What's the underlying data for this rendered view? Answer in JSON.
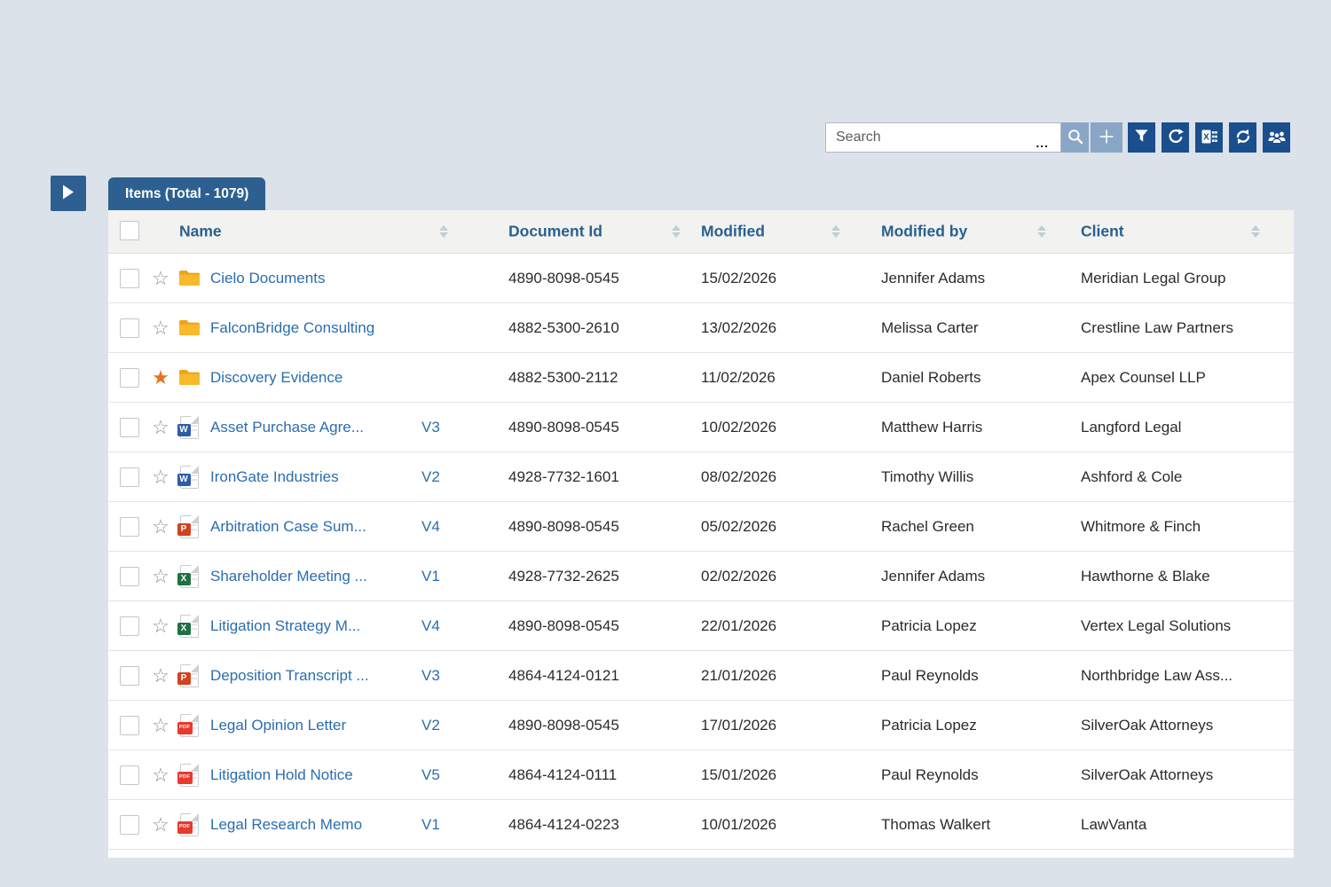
{
  "toolbar": {
    "search": {
      "placeholder": "Search",
      "menu_dots": "..."
    },
    "buttons": [
      {
        "name": "search-button",
        "icon": "magnifier-icon"
      },
      {
        "name": "add-button",
        "icon": "plus-icon"
      },
      {
        "name": "filter-button",
        "icon": "funnel-icon"
      },
      {
        "name": "refresh-button",
        "icon": "redo-arrow-icon"
      },
      {
        "name": "excel-export-button",
        "icon": "excel-icon"
      },
      {
        "name": "sync-button",
        "icon": "sync-arrows-icon"
      },
      {
        "name": "users-button",
        "icon": "people-icon"
      }
    ]
  },
  "panel": {
    "expand_button_icon": "play-arrow-icon"
  },
  "items_tab": {
    "label": "Items (Total - 1079)"
  },
  "table": {
    "columns": [
      {
        "label": "Name",
        "sortable": true
      },
      {
        "label": "Document Id",
        "sortable": true
      },
      {
        "label": "Modified",
        "sortable": true
      },
      {
        "label": "Modified by",
        "sortable": true
      },
      {
        "label": "Client",
        "sortable": true
      }
    ],
    "rows": [
      {
        "starred": false,
        "icon": "folder",
        "name": "Cielo Documents",
        "version": "",
        "doc_id": "4890-8098-0545",
        "modified": "15/02/2026",
        "modified_by": "Jennifer Adams",
        "client": "Meridian Legal Group"
      },
      {
        "starred": false,
        "icon": "folder",
        "name": "FalconBridge Consulting",
        "version": "",
        "doc_id": "4882-5300-2610",
        "modified": "13/02/2026",
        "modified_by": "Melissa Carter",
        "client": "Crestline Law Partners"
      },
      {
        "starred": true,
        "icon": "folder",
        "name": "Discovery Evidence",
        "version": "",
        "doc_id": "4882-5300-2112",
        "modified": "11/02/2026",
        "modified_by": "Daniel Roberts",
        "client": "Apex Counsel LLP"
      },
      {
        "starred": false,
        "icon": "word",
        "name": "Asset Purchase Agre...",
        "version": "V3",
        "doc_id": "4890-8098-0545",
        "modified": "10/02/2026",
        "modified_by": "Matthew Harris",
        "client": "Langford Legal"
      },
      {
        "starred": false,
        "icon": "word",
        "name": "IronGate Industries",
        "version": "V2",
        "doc_id": "4928-7732-1601",
        "modified": "08/02/2026",
        "modified_by": "Timothy Willis",
        "client": "Ashford & Cole"
      },
      {
        "starred": false,
        "icon": "powerpoint",
        "name": "Arbitration Case Sum...",
        "version": "V4",
        "doc_id": "4890-8098-0545",
        "modified": "05/02/2026",
        "modified_by": "Rachel Green",
        "client": "Whitmore & Finch"
      },
      {
        "starred": false,
        "icon": "excel",
        "name": "Shareholder Meeting ...",
        "version": "V1",
        "doc_id": "4928-7732-2625",
        "modified": "02/02/2026",
        "modified_by": "Jennifer Adams",
        "client": "Hawthorne & Blake"
      },
      {
        "starred": false,
        "icon": "excel",
        "name": "Litigation Strategy M...",
        "version": "V4",
        "doc_id": "4890-8098-0545",
        "modified": "22/01/2026",
        "modified_by": "Patricia Lopez",
        "client": "Vertex Legal Solutions"
      },
      {
        "starred": false,
        "icon": "powerpoint",
        "name": "Deposition Transcript ...",
        "version": "V3",
        "doc_id": "4864-4124-0121",
        "modified": "21/01/2026",
        "modified_by": "Paul Reynolds",
        "client": "Northbridge Law Ass..."
      },
      {
        "starred": false,
        "icon": "pdf",
        "name": "Legal Opinion Letter",
        "version": "V2",
        "doc_id": "4890-8098-0545",
        "modified": "17/01/2026",
        "modified_by": "Patricia Lopez",
        "client": "SilverOak Attorneys"
      },
      {
        "starred": false,
        "icon": "pdf",
        "name": "Litigation Hold Notice",
        "version": "V5",
        "doc_id": "4864-4124-0111",
        "modified": "15/01/2026",
        "modified_by": "Paul Reynolds",
        "client": "SilverOak Attorneys"
      },
      {
        "starred": false,
        "icon": "pdf",
        "name": "Legal Research Memo",
        "version": "V1",
        "doc_id": "4864-4124-0223",
        "modified": "10/01/2026",
        "modified_by": "Thomas Walkert",
        "client": "LawVanta"
      }
    ]
  },
  "icons": {
    "folder": {
      "name": "folder-icon",
      "color": "#f6b42a"
    },
    "word": {
      "name": "word-file-icon",
      "badge": "W",
      "color": "#2d5ca8"
    },
    "excel": {
      "name": "excel-file-icon",
      "badge": "X",
      "color": "#1f7145"
    },
    "powerpoint": {
      "name": "powerpoint-file-icon",
      "badge": "P",
      "color": "#cf4320"
    },
    "pdf": {
      "name": "pdf-file-icon",
      "badge": "PDF",
      "color": "#e8392c"
    }
  },
  "colors": {
    "page_background": "#dbe2ea",
    "tab_blue": "#2d6090",
    "toolbar_dark_blue": "#1a4e8c",
    "toolbar_light_blue": "#8aa6c6",
    "link_blue": "#2a6daf",
    "header_text_blue": "#29608f",
    "star_active_orange": "#e8731f"
  }
}
